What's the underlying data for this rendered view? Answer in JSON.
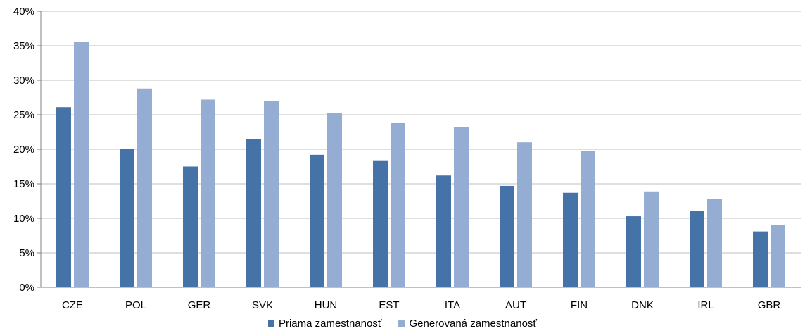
{
  "chart_data": {
    "type": "bar",
    "categories": [
      "CZE",
      "POL",
      "GER",
      "SVK",
      "HUN",
      "EST",
      "ITA",
      "AUT",
      "FIN",
      "DNK",
      "IRL",
      "GBR"
    ],
    "series": [
      {
        "name": "Priama zamestnanosť",
        "color": "#4572A7",
        "values": [
          26.1,
          20.0,
          17.5,
          21.5,
          19.2,
          18.4,
          16.2,
          14.7,
          13.7,
          10.3,
          11.1,
          8.1
        ]
      },
      {
        "name": "Generovaná zamestnanosť",
        "color": "#95ADD3",
        "values": [
          35.6,
          28.8,
          27.2,
          27.0,
          25.3,
          23.8,
          23.2,
          21.0,
          19.7,
          13.9,
          12.8,
          9.0
        ]
      }
    ],
    "ylim": [
      0,
      40
    ],
    "yticks": [
      "0%",
      "5%",
      "10%",
      "15%",
      "20%",
      "25%",
      "30%",
      "35%",
      "40%"
    ],
    "grid": true,
    "legend": "bottom"
  }
}
